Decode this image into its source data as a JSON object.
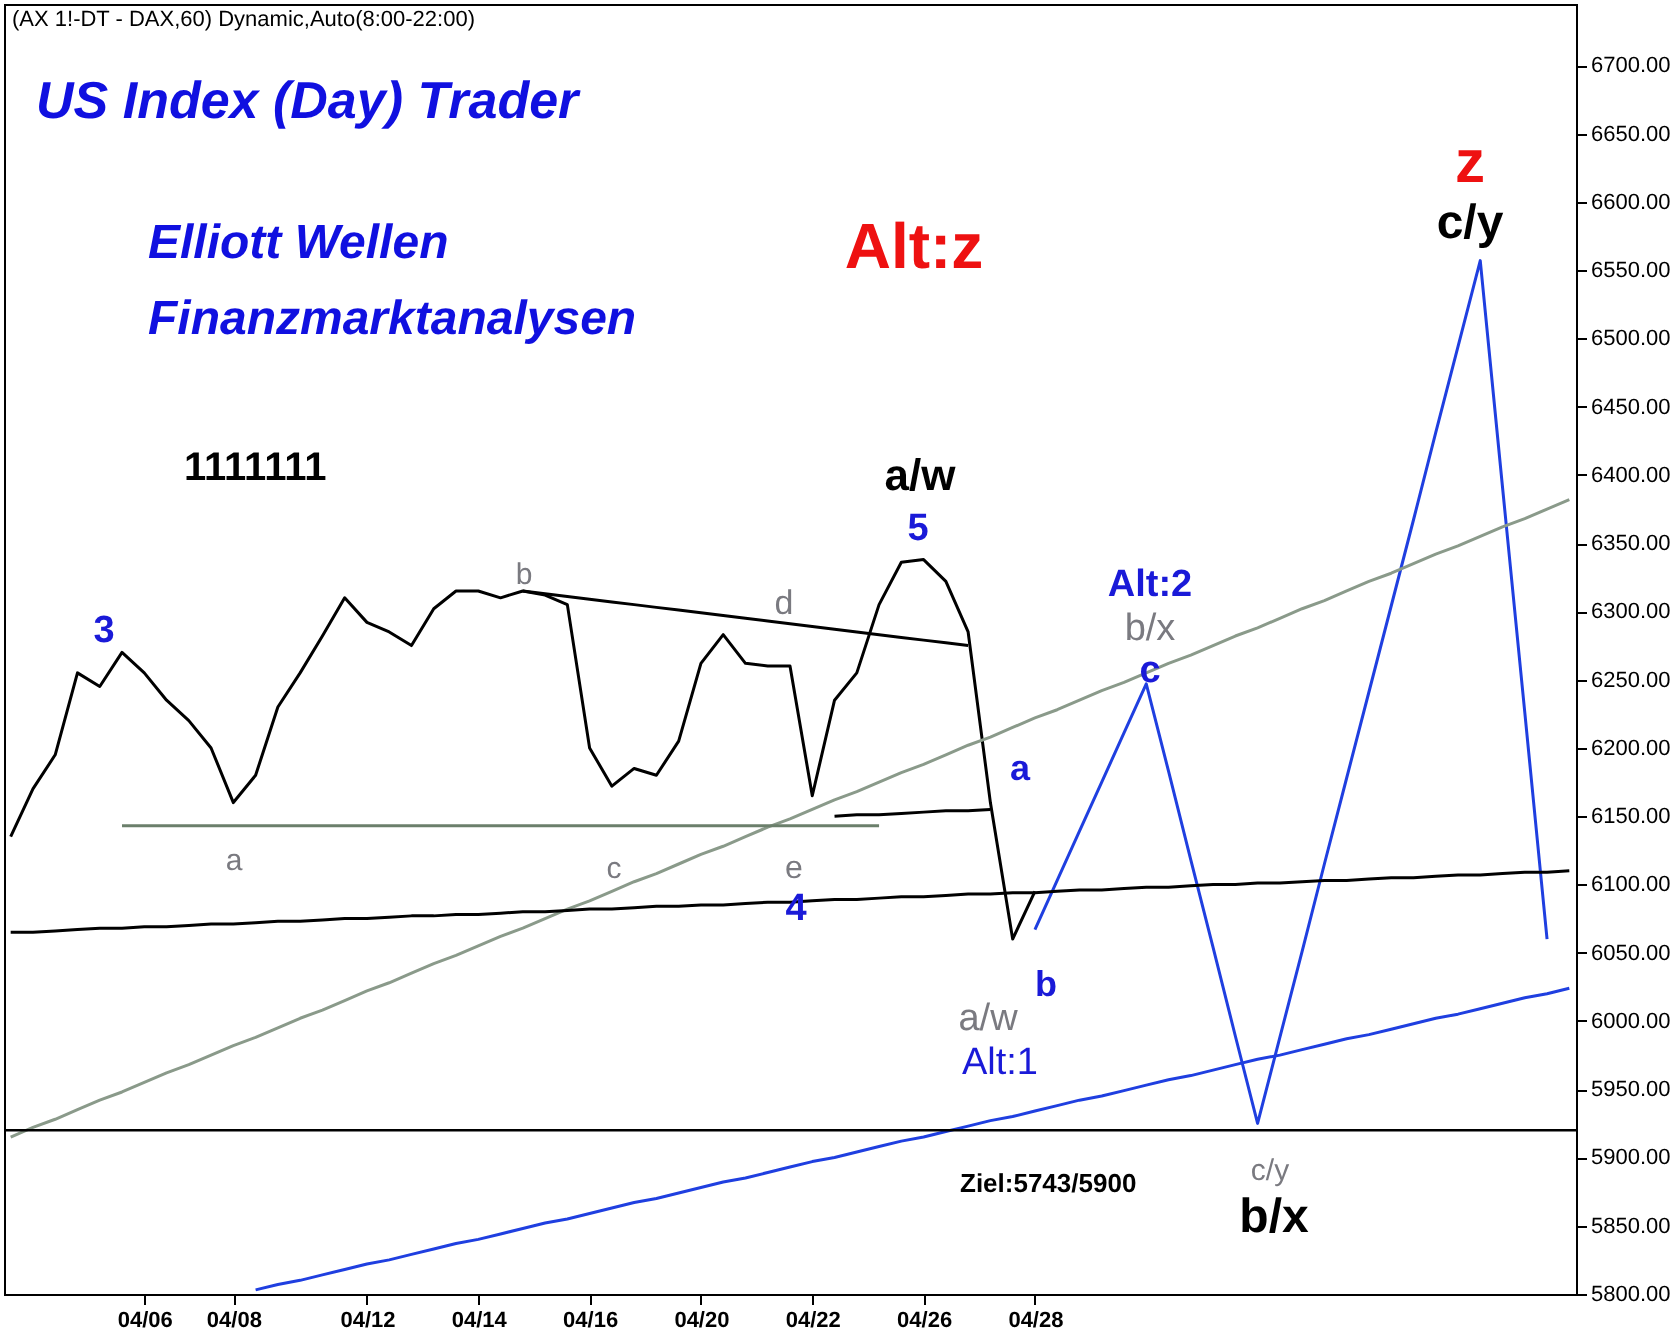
{
  "chart_data": {
    "type": "line",
    "title": "US Index (Day) Trader",
    "subtitle": "Elliott Wellen\nFinanzmarktanalysen",
    "categories": [
      null,
      null,
      null,
      null,
      null,
      null,
      "04/06",
      null,
      null,
      null,
      "04/08",
      null,
      null,
      null,
      null,
      null,
      "04/12",
      null,
      null,
      null,
      null,
      "04/14",
      null,
      null,
      null,
      null,
      "04/16",
      null,
      null,
      null,
      null,
      "04/20",
      null,
      null,
      null,
      null,
      "04/22",
      null,
      null,
      null,
      null,
      "04/26",
      null,
      null,
      null,
      null,
      "04/28",
      null,
      null,
      null,
      null,
      null,
      null,
      null,
      null,
      null,
      null,
      null,
      null,
      null,
      null,
      null,
      null,
      null,
      null,
      null,
      null,
      null,
      null,
      null,
      null
    ],
    "ylim": [
      5800,
      6745
    ],
    "yticks": [
      {
        "value": 5800,
        "label": "5800.00"
      },
      {
        "value": 5850,
        "label": "5850.00"
      },
      {
        "value": 5900,
        "label": "5900.00"
      },
      {
        "value": 5950,
        "label": "5950.00"
      },
      {
        "value": 6000,
        "label": "6000.00"
      },
      {
        "value": 6050,
        "label": "6050.00"
      },
      {
        "value": 6100,
        "label": "6100.00"
      },
      {
        "value": 6150,
        "label": "6150.00"
      },
      {
        "value": 6200,
        "label": "6200.00"
      },
      {
        "value": 6250,
        "label": "6250.00"
      },
      {
        "value": 6300,
        "label": "6300.00"
      },
      {
        "value": 6350,
        "label": "6350.00"
      },
      {
        "value": 6400,
        "label": "6400.00"
      },
      {
        "value": 6450,
        "label": "6450.00"
      },
      {
        "value": 6500,
        "label": "6500.00"
      },
      {
        "value": 6550,
        "label": "6550.00"
      },
      {
        "value": 6600,
        "label": "6600.00"
      },
      {
        "value": 6650,
        "label": "6650.00"
      },
      {
        "value": 6700,
        "label": "6700.00"
      }
    ],
    "grid": false,
    "marker": "none",
    "line_style": "solid",
    "series": [
      {
        "color": "#000000",
        "values": [
          6135,
          6170,
          6195,
          6255,
          6245,
          6270,
          6255,
          6235,
          6220,
          6200,
          6160,
          6180,
          6230,
          6255,
          6282,
          6310,
          6292,
          6285,
          6275,
          6302,
          6315,
          6315,
          6310,
          6315,
          6312,
          6305,
          6200,
          6172,
          6185,
          6180,
          6205,
          6262,
          6283,
          6262,
          6260,
          6260,
          6165,
          6235,
          6255,
          6305,
          6336,
          6338,
          6322,
          6285,
          6160,
          6060,
          6095,
          null,
          null,
          null,
          null,
          null,
          null,
          null,
          null,
          null,
          null,
          null,
          null,
          null,
          null,
          null,
          null,
          null,
          null,
          null,
          null,
          null,
          null,
          null,
          null
        ]
      },
      {
        "color": "#1f3fe0",
        "values": [
          null,
          null,
          null,
          null,
          null,
          null,
          null,
          null,
          null,
          null,
          null,
          null,
          null,
          null,
          null,
          null,
          null,
          null,
          null,
          null,
          null,
          null,
          null,
          null,
          null,
          null,
          null,
          null,
          null,
          null,
          null,
          null,
          null,
          null,
          null,
          null,
          null,
          null,
          null,
          null,
          null,
          null,
          null,
          null,
          null,
          null,
          6067,
          6103,
          6139,
          6175,
          6211,
          6247,
          6183,
          6118,
          6054,
          5989,
          5925,
          5988,
          6051,
          6115,
          6178,
          6241,
          6304,
          6367,
          6431,
          6494,
          6557,
          6391,
          6226,
          6060,
          null
        ]
      },
      {
        "color": "#8a9a8a",
        "values": [
          5915,
          5922,
          5928,
          5935,
          5942,
          5948,
          5955,
          5962,
          5968,
          5975,
          5982,
          5988,
          5995,
          6002,
          6008,
          6015,
          6022,
          6028,
          6035,
          6042,
          6048,
          6055,
          6062,
          6068,
          6075,
          6082,
          6088,
          6095,
          6102,
          6108,
          6115,
          6122,
          6128,
          6135,
          6142,
          6148,
          6155,
          6162,
          6168,
          6175,
          6182,
          6188,
          6195,
          6202,
          6208,
          6215,
          6222,
          6228,
          6235,
          6242,
          6248,
          6255,
          6262,
          6268,
          6275,
          6282,
          6288,
          6295,
          6302,
          6308,
          6315,
          6322,
          6328,
          6335,
          6342,
          6348,
          6355,
          6362,
          6368,
          6375,
          6382
        ]
      },
      {
        "color": "#000000",
        "values": [
          6065,
          6065,
          6066,
          6067,
          6068,
          6068,
          6069,
          6069,
          6070,
          6071,
          6071,
          6072,
          6073,
          6073,
          6074,
          6075,
          6075,
          6076,
          6077,
          6077,
          6078,
          6078,
          6079,
          6080,
          6080,
          6081,
          6082,
          6082,
          6083,
          6084,
          6084,
          6085,
          6085,
          6086,
          6087,
          6087,
          6088,
          6089,
          6089,
          6090,
          6091,
          6091,
          6092,
          6093,
          6093,
          6094,
          6094,
          6095,
          6096,
          6096,
          6097,
          6098,
          6098,
          6099,
          6100,
          6100,
          6101,
          6101,
          6102,
          6103,
          6103,
          6104,
          6105,
          6105,
          6106,
          6107,
          6107,
          6108,
          6109,
          6109,
          6110
        ]
      },
      {
        "color": "#1f3fe0",
        "values": [
          null,
          null,
          null,
          null,
          null,
          null,
          null,
          null,
          null,
          null,
          null,
          5803,
          5807,
          5810,
          5814,
          5818,
          5822,
          5825,
          5829,
          5833,
          5837,
          5840,
          5844,
          5848,
          5852,
          5855,
          5859,
          5863,
          5867,
          5870,
          5874,
          5878,
          5882,
          5885,
          5889,
          5893,
          5897,
          5900,
          5904,
          5908,
          5912,
          5915,
          5919,
          5923,
          5927,
          5930,
          5934,
          5938,
          5942,
          5945,
          5949,
          5953,
          5957,
          5960,
          5964,
          5968,
          5972,
          5975,
          5979,
          5983,
          5987,
          5990,
          5994,
          5998,
          6002,
          6005,
          6009,
          6013,
          6017,
          6020,
          6024
        ]
      },
      {
        "color": "#6b7f6b",
        "values": [
          null,
          null,
          null,
          null,
          null,
          6143,
          6143,
          6143,
          6143,
          6143,
          6143,
          6143,
          6143,
          6143,
          6143,
          6143,
          6143,
          6143,
          6143,
          6143,
          6143,
          6143,
          6143,
          6143,
          6143,
          6143,
          6143,
          6143,
          6143,
          6143,
          6143,
          6143,
          6143,
          6143,
          6143,
          6143,
          6143,
          6143,
          6143,
          6143,
          null,
          null,
          null,
          null,
          null,
          null,
          null,
          null,
          null,
          null,
          null,
          null,
          null,
          null,
          null,
          null,
          null,
          null,
          null,
          null,
          null,
          null,
          null,
          null,
          null,
          null,
          null,
          null,
          null,
          null,
          null
        ]
      },
      {
        "color": "#000000",
        "values": [
          null,
          null,
          null,
          null,
          null,
          null,
          null,
          null,
          null,
          null,
          null,
          null,
          null,
          null,
          null,
          null,
          null,
          null,
          null,
          null,
          null,
          null,
          null,
          6315,
          6313,
          6311,
          6309,
          6307,
          6305,
          6303,
          6301,
          6299,
          6297,
          6295,
          6293,
          6291,
          6289,
          6287,
          6285,
          6283,
          6281,
          6279,
          6277,
          6275,
          null,
          null,
          null,
          null,
          null,
          null,
          null,
          null,
          null,
          null,
          null,
          null,
          null,
          null,
          null,
          null,
          null,
          null,
          null,
          null,
          null,
          null,
          null,
          null,
          null,
          null,
          null
        ]
      },
      {
        "color": "#000000",
        "values": [
          null,
          null,
          null,
          null,
          null,
          null,
          null,
          null,
          null,
          null,
          null,
          null,
          null,
          null,
          null,
          null,
          null,
          null,
          null,
          null,
          null,
          null,
          null,
          null,
          null,
          null,
          null,
          null,
          null,
          null,
          null,
          null,
          null,
          null,
          null,
          null,
          null,
          6150,
          6151,
          6151,
          6152,
          6153,
          6154,
          6154,
          6155,
          null,
          null,
          null,
          null,
          null,
          null,
          null,
          null,
          null,
          null,
          null,
          null,
          null,
          null,
          null,
          null,
          null,
          null,
          null,
          null,
          null,
          null,
          null,
          null,
          null,
          null
        ]
      }
    ],
    "ref_lines": [
      {
        "axis": "y",
        "value": 5920,
        "color": "#000000"
      }
    ],
    "annotations": [
      "(AX 1!-DT - DAX,60) Dynamic,Auto(8:00-22:00)",
      "1111111",
      "Ziel:5743/5900",
      "3",
      "a",
      "b",
      "c",
      "d",
      "e",
      "4",
      "5",
      "a/w",
      "Alt:z",
      "a",
      "b",
      "a/w",
      "Alt:1",
      "Alt:2",
      "b/x",
      "c",
      "c/y",
      "b/x",
      "z",
      "c/y"
    ]
  }
}
